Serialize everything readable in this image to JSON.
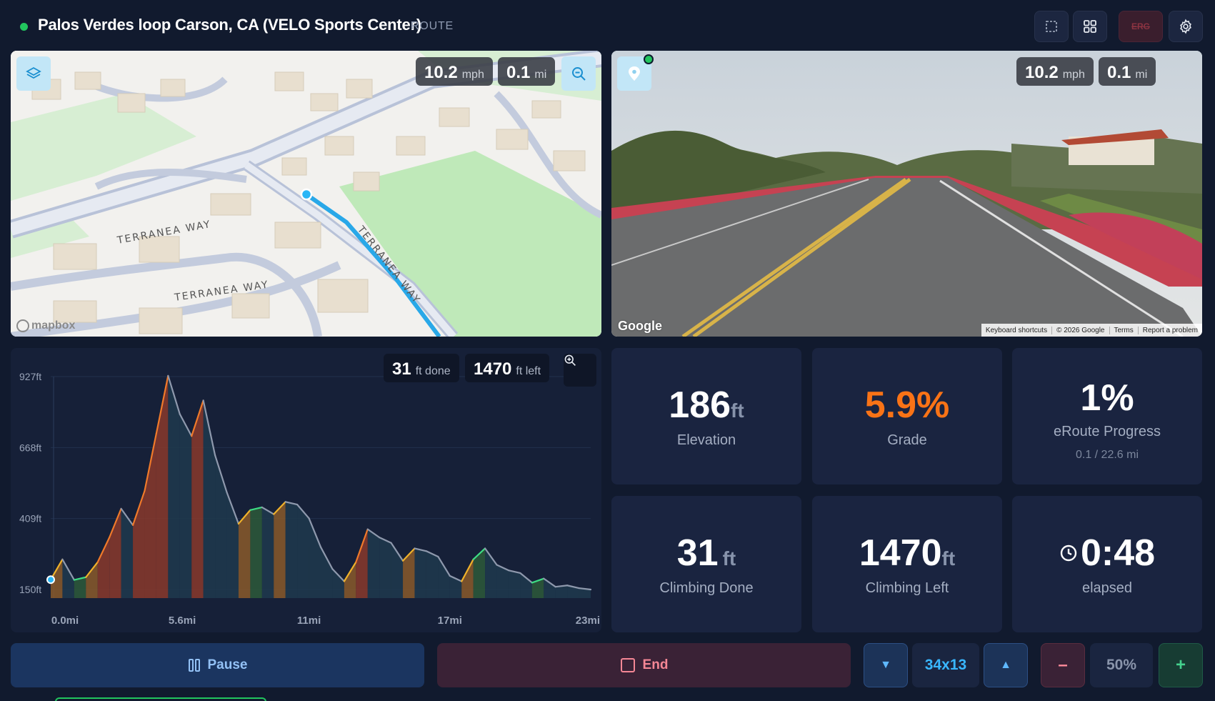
{
  "header": {
    "title": "Palos Verdes loop Carson, CA (VELO Sports Center)",
    "tag": "ROUTE",
    "buttons": {
      "fullscreen_icon": "fullscreen-icon",
      "grid_icon": "grid-icon",
      "erg_label": "ERG",
      "settings_icon": "gear-icon"
    },
    "status_color": "#22c55e"
  },
  "map": {
    "speed_value": "10.2",
    "speed_unit": "mph",
    "distance_value": "0.1",
    "distance_unit": "mi",
    "street_labels": [
      "TERRANEA WAY",
      "TERRANEA WAY",
      "TERRANEA WAY"
    ],
    "attribution": "mapbox"
  },
  "streetview": {
    "speed_value": "10.2",
    "speed_unit": "mph",
    "distance_value": "0.1",
    "distance_unit": "mi",
    "logo": "Google",
    "links": [
      "Keyboard shortcuts",
      "© 2026 Google",
      "Terms",
      "Report a problem"
    ]
  },
  "elevation": {
    "done_value": "31",
    "done_unit": "ft done",
    "left_value": "1470",
    "left_unit": "ft left",
    "y_ticks": [
      "927ft",
      "668ft",
      "409ft",
      "150ft"
    ],
    "x_ticks": [
      "0.0mi",
      "5.6mi",
      "11mi",
      "17mi",
      "23mi"
    ]
  },
  "chart_data": {
    "type": "area",
    "xlabel": "",
    "ylabel": "",
    "xlim": [
      0,
      23
    ],
    "ylim": [
      150,
      927
    ],
    "x": [
      0,
      0.5,
      1.0,
      1.5,
      2.0,
      2.5,
      3.0,
      3.5,
      4.0,
      4.5,
      5.0,
      5.5,
      6.0,
      6.5,
      7.0,
      7.5,
      8.0,
      8.5,
      9.0,
      9.5,
      10.0,
      10.5,
      11.0,
      11.5,
      12.0,
      12.5,
      13.0,
      13.5,
      14.0,
      14.5,
      15.0,
      15.5,
      16.0,
      16.5,
      17.0,
      17.5,
      18.0,
      18.5,
      19.0,
      19.5,
      20.0,
      20.5,
      21.0,
      21.5,
      22.0,
      22.5,
      23.0
    ],
    "values": [
      186,
      260,
      185,
      195,
      250,
      340,
      445,
      385,
      510,
      720,
      930,
      790,
      710,
      840,
      640,
      505,
      390,
      440,
      450,
      425,
      470,
      460,
      410,
      305,
      225,
      180,
      250,
      370,
      340,
      320,
      255,
      300,
      290,
      270,
      200,
      180,
      260,
      300,
      240,
      220,
      210,
      175,
      190,
      160,
      165,
      155,
      150
    ],
    "grid": true
  },
  "stats": {
    "elevation": {
      "value": "186",
      "unit": "ft",
      "label": "Elevation"
    },
    "grade": {
      "value": "5.9%",
      "label": "Grade",
      "color": "#f97316"
    },
    "progress": {
      "value": "1%",
      "label": "eRoute Progress",
      "sub": "0.1 / 22.6 mi"
    },
    "climb_done": {
      "value": "31",
      "unit": "ft",
      "label": "Climbing Done"
    },
    "climb_left": {
      "value": "1470",
      "unit": "ft",
      "label": "Climbing Left"
    },
    "elapsed": {
      "value": "0:48",
      "label": "elapsed",
      "icon": "clock-icon"
    }
  },
  "controls": {
    "pause_label": "Pause",
    "end_label": "End",
    "gear_down": "▼",
    "gear_value": "34x13",
    "gear_up": "▲",
    "pct_down": "–",
    "pct_value": "50%",
    "pct_up": "+"
  }
}
